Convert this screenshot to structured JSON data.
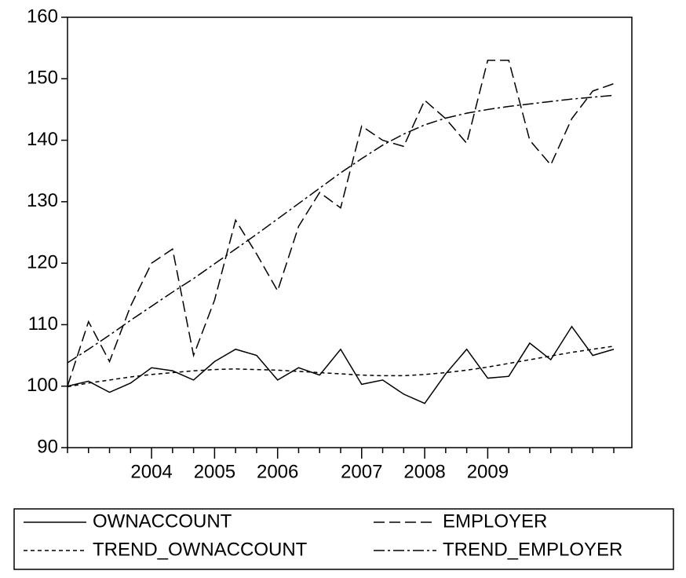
{
  "chart_data": {
    "type": "line",
    "categories": [
      null,
      null,
      null,
      null,
      "2004",
      null,
      null,
      "2005",
      null,
      null,
      "2006",
      null,
      null,
      null,
      "2007",
      null,
      null,
      "2008",
      null,
      null,
      "2009",
      null,
      null,
      null,
      null,
      null,
      null
    ],
    "series": [
      {
        "name": "OWNACCOUNT",
        "color": "#000000",
        "dash": "solid",
        "values": [
          100,
          100.8,
          99,
          100.5,
          103,
          102.5,
          101,
          104,
          106,
          105,
          101,
          103,
          101.8,
          106,
          100.3,
          101,
          98.7,
          97.2,
          102,
          106,
          101.3,
          101.6,
          107,
          104.3,
          109.7,
          105,
          106
        ]
      },
      {
        "name": "EMPLOYER",
        "color": "#000000",
        "dash": "dashed",
        "values": [
          100,
          110.5,
          104,
          113,
          120,
          122.3,
          105,
          114,
          127,
          121.5,
          115.5,
          126,
          131.5,
          129,
          142.3,
          140,
          139,
          146.5,
          143.5,
          139.5,
          153,
          153,
          140,
          136,
          143.5,
          148,
          149.2
        ]
      },
      {
        "name": "TREND_OWNACCOUNT",
        "color": "#000000",
        "dash": "dotted",
        "values": [
          99.9,
          100.5,
          101,
          101.5,
          101.9,
          102.2,
          102.5,
          102.7,
          102.8,
          102.7,
          102.6,
          102.4,
          102.2,
          102,
          101.8,
          101.7,
          101.7,
          101.9,
          102.2,
          102.6,
          103.1,
          103.7,
          104.3,
          104.9,
          105.5,
          106,
          106.5
        ]
      },
      {
        "name": "TREND_EMPLOYER",
        "color": "#000000",
        "dash": "dashdot",
        "values": [
          103.8,
          106,
          108.3,
          110.7,
          113,
          115.3,
          117.5,
          119.9,
          122.3,
          124.7,
          127.2,
          129.7,
          132.2,
          134.7,
          137,
          139.2,
          141,
          142.5,
          143.6,
          144.4,
          145,
          145.5,
          145.9,
          146.3,
          146.7,
          147,
          147.3
        ]
      }
    ],
    "ylim": [
      90,
      160
    ],
    "yticks": [
      90,
      100,
      110,
      120,
      130,
      140,
      150,
      160
    ],
    "legend": "bottom"
  }
}
